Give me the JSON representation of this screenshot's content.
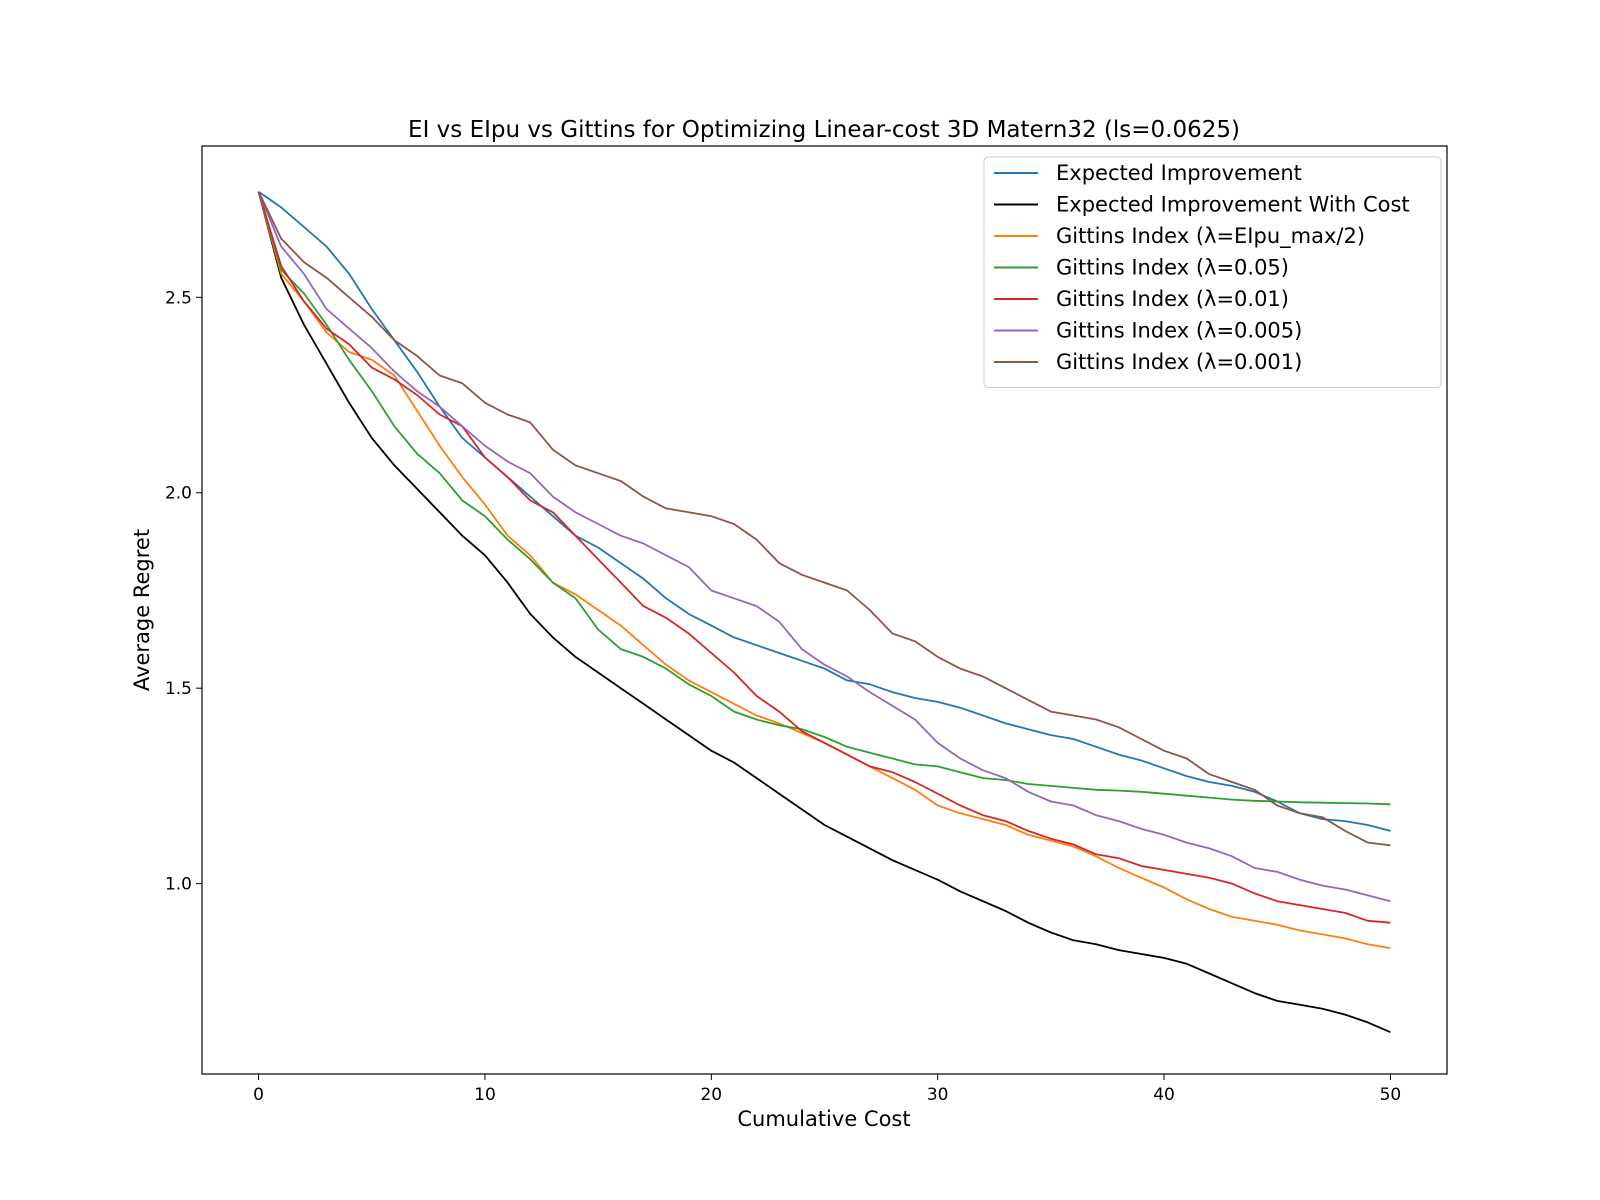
{
  "chart_data": {
    "type": "line",
    "title": "EI vs EIpu vs Gittins for Optimizing Linear-cost 3D Matern32 (ls=0.0625)",
    "xlabel": "Cumulative Cost",
    "ylabel": "Average Regret",
    "xlim": [
      -2.5,
      52.5
    ],
    "ylim": [
      0.513,
      2.887
    ],
    "xticks": [
      0,
      10,
      20,
      30,
      40,
      50
    ],
    "xtick_labels": [
      "0",
      "10",
      "20",
      "30",
      "40",
      "50"
    ],
    "yticks": [
      1.0,
      1.5,
      2.0,
      2.5
    ],
    "ytick_labels": [
      "1.0",
      "1.5",
      "2.0",
      "2.5"
    ],
    "grid": false,
    "legend_position": "upper right",
    "series": [
      {
        "name": "Expected Improvement",
        "color": "#1f77b4",
        "x": [
          0,
          1,
          2,
          3,
          4,
          5,
          6,
          7,
          8,
          9,
          10,
          11,
          12,
          13,
          14,
          15,
          16,
          17,
          18,
          19,
          20,
          21,
          22,
          23,
          24,
          25,
          26,
          27,
          28,
          29,
          30,
          31,
          32,
          33,
          34,
          35,
          36,
          37,
          38,
          39,
          40,
          41,
          42,
          43,
          44,
          45,
          46,
          47,
          48,
          49,
          50
        ],
        "y": [
          2.77,
          2.73,
          2.68,
          2.63,
          2.56,
          2.47,
          2.39,
          2.31,
          2.22,
          2.14,
          2.09,
          2.04,
          1.99,
          1.94,
          1.89,
          1.86,
          1.82,
          1.78,
          1.73,
          1.69,
          1.66,
          1.63,
          1.61,
          1.59,
          1.57,
          1.55,
          1.52,
          1.51,
          1.49,
          1.475,
          1.465,
          1.45,
          1.43,
          1.41,
          1.395,
          1.38,
          1.37,
          1.35,
          1.33,
          1.315,
          1.295,
          1.275,
          1.26,
          1.25,
          1.235,
          1.21,
          1.18,
          1.165,
          1.16,
          1.15,
          1.135
        ]
      },
      {
        "name": "Expected Improvement With Cost",
        "color": "#000000",
        "x": [
          0,
          1,
          2,
          3,
          4,
          5,
          6,
          7,
          8,
          9,
          10,
          11,
          12,
          13,
          14,
          15,
          16,
          17,
          18,
          19,
          20,
          21,
          22,
          23,
          24,
          25,
          26,
          27,
          28,
          29,
          30,
          31,
          32,
          33,
          34,
          35,
          36,
          37,
          38,
          39,
          40,
          41,
          42,
          43,
          44,
          45,
          46,
          47,
          48,
          49,
          50
        ],
        "y": [
          2.77,
          2.55,
          2.43,
          2.33,
          2.23,
          2.14,
          2.07,
          2.01,
          1.95,
          1.89,
          1.84,
          1.77,
          1.69,
          1.63,
          1.58,
          1.54,
          1.5,
          1.46,
          1.42,
          1.38,
          1.34,
          1.31,
          1.27,
          1.23,
          1.19,
          1.15,
          1.12,
          1.09,
          1.06,
          1.035,
          1.01,
          0.98,
          0.955,
          0.93,
          0.9,
          0.875,
          0.855,
          0.845,
          0.83,
          0.82,
          0.81,
          0.795,
          0.77,
          0.745,
          0.72,
          0.7,
          0.69,
          0.68,
          0.665,
          0.645,
          0.62
        ]
      },
      {
        "name": "Gittins Index (λ=EIpu_max/2)",
        "color": "#ff7f0e",
        "x": [
          0,
          1,
          2,
          3,
          4,
          5,
          6,
          7,
          8,
          9,
          10,
          11,
          12,
          13,
          14,
          15,
          16,
          17,
          18,
          19,
          20,
          21,
          22,
          23,
          24,
          25,
          26,
          27,
          28,
          29,
          30,
          31,
          32,
          33,
          34,
          35,
          36,
          37,
          38,
          39,
          40,
          41,
          42,
          43,
          44,
          45,
          46,
          47,
          48,
          49,
          50
        ],
        "y": [
          2.77,
          2.56,
          2.49,
          2.41,
          2.36,
          2.34,
          2.3,
          2.21,
          2.12,
          2.04,
          1.97,
          1.89,
          1.84,
          1.77,
          1.74,
          1.7,
          1.66,
          1.61,
          1.56,
          1.52,
          1.49,
          1.46,
          1.43,
          1.41,
          1.385,
          1.36,
          1.33,
          1.3,
          1.27,
          1.24,
          1.2,
          1.18,
          1.165,
          1.15,
          1.125,
          1.11,
          1.095,
          1.07,
          1.04,
          1.015,
          0.99,
          0.96,
          0.935,
          0.915,
          0.905,
          0.895,
          0.88,
          0.87,
          0.86,
          0.845,
          0.835
        ]
      },
      {
        "name": "Gittins Index (λ=0.05)",
        "color": "#2ca02c",
        "x": [
          0,
          1,
          2,
          3,
          4,
          5,
          6,
          7,
          8,
          9,
          10,
          11,
          12,
          13,
          14,
          15,
          16,
          17,
          18,
          19,
          20,
          21,
          22,
          23,
          24,
          25,
          26,
          27,
          28,
          29,
          30,
          31,
          32,
          33,
          34,
          35,
          36,
          37,
          38,
          39,
          40,
          41,
          42,
          43,
          44,
          45,
          46,
          47,
          48,
          49,
          50
        ],
        "y": [
          2.77,
          2.57,
          2.51,
          2.43,
          2.34,
          2.26,
          2.17,
          2.1,
          2.05,
          1.98,
          1.94,
          1.88,
          1.83,
          1.77,
          1.73,
          1.65,
          1.6,
          1.58,
          1.55,
          1.51,
          1.48,
          1.44,
          1.42,
          1.405,
          1.395,
          1.375,
          1.35,
          1.335,
          1.32,
          1.305,
          1.3,
          1.285,
          1.27,
          1.265,
          1.255,
          1.25,
          1.245,
          1.24,
          1.238,
          1.235,
          1.23,
          1.225,
          1.22,
          1.215,
          1.212,
          1.21,
          1.208,
          1.207,
          1.206,
          1.205,
          1.203
        ]
      },
      {
        "name": "Gittins Index (λ=0.01)",
        "color": "#d62728",
        "x": [
          0,
          1,
          2,
          3,
          4,
          5,
          6,
          7,
          8,
          9,
          10,
          11,
          12,
          13,
          14,
          15,
          16,
          17,
          18,
          19,
          20,
          21,
          22,
          23,
          24,
          25,
          26,
          27,
          28,
          29,
          30,
          31,
          32,
          33,
          34,
          35,
          36,
          37,
          38,
          39,
          40,
          41,
          42,
          43,
          44,
          45,
          46,
          47,
          48,
          49,
          50
        ],
        "y": [
          2.77,
          2.58,
          2.49,
          2.42,
          2.38,
          2.32,
          2.29,
          2.25,
          2.2,
          2.17,
          2.09,
          2.04,
          1.98,
          1.95,
          1.89,
          1.83,
          1.77,
          1.71,
          1.68,
          1.64,
          1.59,
          1.54,
          1.48,
          1.44,
          1.39,
          1.36,
          1.33,
          1.3,
          1.285,
          1.26,
          1.23,
          1.2,
          1.175,
          1.16,
          1.135,
          1.115,
          1.1,
          1.075,
          1.065,
          1.045,
          1.035,
          1.025,
          1.015,
          1.0,
          0.975,
          0.955,
          0.945,
          0.935,
          0.925,
          0.905,
          0.9
        ]
      },
      {
        "name": "Gittins Index (λ=0.005)",
        "color": "#9467bd",
        "x": [
          0,
          1,
          2,
          3,
          4,
          5,
          6,
          7,
          8,
          9,
          10,
          11,
          12,
          13,
          14,
          15,
          16,
          17,
          18,
          19,
          20,
          21,
          22,
          23,
          24,
          25,
          26,
          27,
          28,
          29,
          30,
          31,
          32,
          33,
          34,
          35,
          36,
          37,
          38,
          39,
          40,
          41,
          42,
          43,
          44,
          45,
          46,
          47,
          48,
          49,
          50
        ],
        "y": [
          2.77,
          2.63,
          2.56,
          2.47,
          2.42,
          2.37,
          2.31,
          2.26,
          2.22,
          2.17,
          2.12,
          2.08,
          2.05,
          1.99,
          1.95,
          1.92,
          1.89,
          1.87,
          1.84,
          1.81,
          1.75,
          1.73,
          1.71,
          1.67,
          1.6,
          1.56,
          1.53,
          1.49,
          1.455,
          1.42,
          1.36,
          1.32,
          1.29,
          1.27,
          1.235,
          1.21,
          1.2,
          1.175,
          1.16,
          1.14,
          1.125,
          1.105,
          1.09,
          1.07,
          1.04,
          1.03,
          1.01,
          0.995,
          0.985,
          0.97,
          0.955
        ]
      },
      {
        "name": "Gittins Index (λ=0.001)",
        "color": "#8c564b",
        "x": [
          0,
          1,
          2,
          3,
          4,
          5,
          6,
          7,
          8,
          9,
          10,
          11,
          12,
          13,
          14,
          15,
          16,
          17,
          18,
          19,
          20,
          21,
          22,
          23,
          24,
          25,
          26,
          27,
          28,
          29,
          30,
          31,
          32,
          33,
          34,
          35,
          36,
          37,
          38,
          39,
          40,
          41,
          42,
          43,
          44,
          45,
          46,
          47,
          48,
          49,
          50
        ],
        "y": [
          2.77,
          2.65,
          2.59,
          2.55,
          2.5,
          2.45,
          2.39,
          2.35,
          2.3,
          2.28,
          2.23,
          2.2,
          2.18,
          2.11,
          2.07,
          2.05,
          2.03,
          1.99,
          1.96,
          1.95,
          1.94,
          1.92,
          1.88,
          1.82,
          1.79,
          1.77,
          1.75,
          1.7,
          1.64,
          1.62,
          1.58,
          1.55,
          1.53,
          1.5,
          1.47,
          1.44,
          1.43,
          1.42,
          1.4,
          1.37,
          1.34,
          1.32,
          1.28,
          1.26,
          1.24,
          1.2,
          1.18,
          1.17,
          1.135,
          1.105,
          1.098
        ]
      }
    ]
  }
}
